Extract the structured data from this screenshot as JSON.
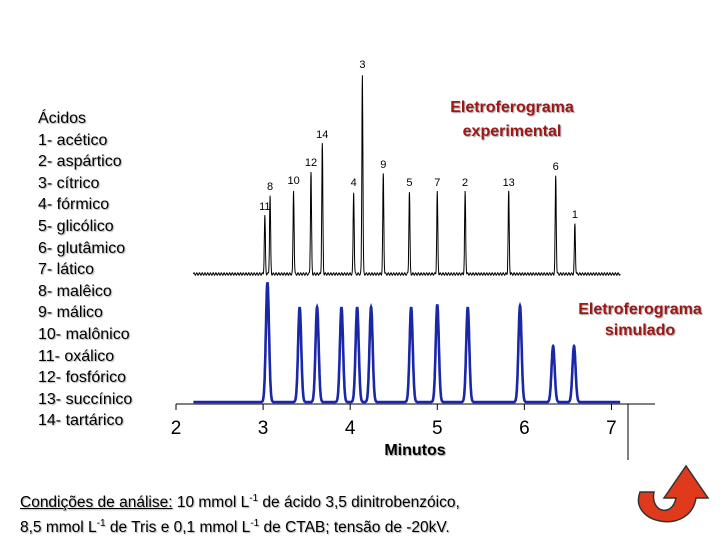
{
  "legend": {
    "title": "Ácidos",
    "items": [
      "1- acético",
      "2- aspártico",
      "3- cítrico",
      "4- fórmico",
      "5- glicólico",
      "6- glutâmico",
      "7- lático",
      "8- malêico",
      "9- málico",
      "10- malônico",
      "11- oxálico",
      "12- fosfórico",
      "13- succínico",
      "14- tartárico"
    ]
  },
  "labels": {
    "experimental_line1": "Eletroferograma",
    "experimental_line2": "experimental",
    "simulated_line1": "Eletroferograma",
    "simulated_line2": "simulado"
  },
  "conditions": {
    "prefix": "Condições de análise:",
    "line1_a": " 10 mmol L",
    "exp1": "-1",
    "line1_b": " de ácido 3,5 dinitrobenzóico,",
    "line2_a": "8,5 mmol L",
    "exp2": "-1",
    "line2_b": " de Tris e 0,1 mmol L",
    "exp3": "-1",
    "line2_c": " de CTAB; tensão de -20kV."
  },
  "colors": {
    "experimental": "#000000",
    "simulated": "#1a27a8",
    "label": "#9e1717",
    "return_icon": "#e03a1c"
  },
  "chart_data": {
    "type": "line",
    "title": "",
    "xlabel": "Minutos",
    "ylabel": "",
    "xlim": [
      2,
      7.5
    ],
    "x_ticks": [
      2,
      3,
      4,
      5,
      6,
      7
    ],
    "x_tick_labels": [
      "2",
      "3",
      "4",
      "5",
      "6",
      "7"
    ],
    "series": [
      {
        "name": "Eletroferograma experimental",
        "peaks": [
          {
            "label": "11",
            "x": 3.02,
            "height": 0.29
          },
          {
            "label": "8",
            "x": 3.08,
            "height": 0.39
          },
          {
            "label": "10",
            "x": 3.35,
            "height": 0.42
          },
          {
            "label": "12",
            "x": 3.55,
            "height": 0.51
          },
          {
            "label": "14",
            "x": 3.68,
            "height": 0.65
          },
          {
            "label": "3",
            "x": 4.14,
            "height": 1.0
          },
          {
            "label": "4",
            "x": 4.04,
            "height": 0.41
          },
          {
            "label": "9",
            "x": 4.38,
            "height": 0.5
          },
          {
            "label": "5",
            "x": 4.68,
            "height": 0.41
          },
          {
            "label": "7",
            "x": 5.0,
            "height": 0.41
          },
          {
            "label": "2",
            "x": 5.32,
            "height": 0.41
          },
          {
            "label": "13",
            "x": 5.82,
            "height": 0.41
          },
          {
            "label": "6",
            "x": 6.36,
            "height": 0.49
          },
          {
            "label": "1",
            "x": 6.58,
            "height": 0.25
          }
        ]
      },
      {
        "name": "Eletroferograma simulado",
        "peaks": [
          {
            "x": 3.05,
            "height": 0.92
          },
          {
            "x": 3.42,
            "height": 0.73
          },
          {
            "x": 3.62,
            "height": 0.73
          },
          {
            "x": 3.9,
            "height": 0.73
          },
          {
            "x": 4.08,
            "height": 0.73
          },
          {
            "x": 4.24,
            "height": 0.73
          },
          {
            "x": 4.7,
            "height": 0.73
          },
          {
            "x": 5.0,
            "height": 0.75
          },
          {
            "x": 5.35,
            "height": 0.73
          },
          {
            "x": 5.95,
            "height": 0.74
          },
          {
            "x": 6.33,
            "height": 0.43
          },
          {
            "x": 6.57,
            "height": 0.43
          }
        ]
      }
    ]
  }
}
